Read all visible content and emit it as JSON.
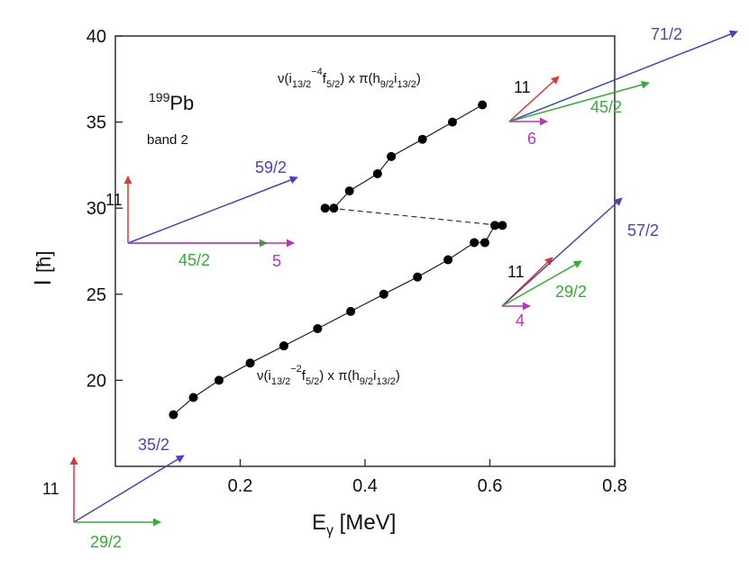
{
  "chart_data": {
    "type": "scatter",
    "title": "",
    "xlabel": {
      "main": "E",
      "sub": "γ",
      "unit": " [MeV]"
    },
    "ylabel": {
      "main": "I",
      "unit": "[ħ]"
    },
    "xlim": [
      0.0,
      0.8
    ],
    "ylim": [
      15.0,
      40.0
    ],
    "xticks": [
      0.2,
      0.4,
      0.6,
      0.8
    ],
    "xtick_labels": [
      "0.2",
      "0.4",
      "0.6",
      "0.8"
    ],
    "yticks": [
      20,
      25,
      30,
      35,
      40
    ],
    "ytick_labels": [
      "20",
      "25",
      "30",
      "35",
      "40"
    ],
    "grid": false,
    "series": [
      {
        "x": [
          0.093,
          0.125,
          0.166,
          0.216,
          0.27,
          0.324,
          0.377,
          0.43,
          0.484,
          0.533,
          0.575,
          0.592,
          0.608,
          0.62
        ],
        "y": [
          18,
          19,
          20,
          21,
          22,
          23,
          24,
          25,
          26,
          27,
          28,
          28,
          29,
          29
        ]
      },
      {
        "x": [
          0.336,
          0.35,
          0.375,
          0.42,
          0.442,
          0.492,
          0.54,
          0.588
        ],
        "y": [
          30,
          30,
          31,
          32,
          33,
          34,
          35,
          36
        ]
      }
    ],
    "connector": {
      "style": "dashed",
      "x": [
        0.345,
        0.615
      ],
      "y": [
        30,
        29
      ]
    },
    "annotations": {
      "nucleus": {
        "mass": "199",
        "symbol": "Pb"
      },
      "band": "band 2",
      "config_upper": {
        "a": "ν(i",
        "a_sub": "13/2",
        "a_sup": "−4",
        "b": "f",
        "b_sub": "5/2",
        "c": ") x π(h",
        "c_sub": "9/2",
        "d": "i",
        "d_sub": "13/2",
        "e": ")"
      },
      "config_lower": {
        "a": "ν(i",
        "a_sub": "13/2",
        "a_sup": "−2",
        "b": "f",
        "b_sub": "5/2",
        "c": ") x π(h",
        "c_sub": "9/2",
        "d": "i",
        "d_sub": "13/2",
        "e": ")"
      }
    },
    "vector_diagrams": [
      {
        "vectors": [
          {
            "label": "11",
            "color": "#d83a3a"
          },
          {
            "label": "59/2",
            "color": "#4646b4"
          },
          {
            "label": "45/2",
            "color": "#3aaa3a"
          },
          {
            "label": "5",
            "color": "#b23ab2"
          }
        ]
      },
      {
        "vectors": [
          {
            "label": "11",
            "color": "#d83a3a"
          },
          {
            "label": "71/2",
            "color": "#4646b4"
          },
          {
            "label": "45/2",
            "color": "#3aaa3a"
          },
          {
            "label": "6",
            "color": "#b23ab2"
          }
        ]
      },
      {
        "vectors": [
          {
            "label": "11",
            "color": "#d83a3a"
          },
          {
            "label": "57/2",
            "color": "#4646b4"
          },
          {
            "label": "29/2",
            "color": "#3aaa3a"
          },
          {
            "label": "4",
            "color": "#b23ab2"
          }
        ]
      },
      {
        "vectors": [
          {
            "label": "11",
            "color": "#d83a3a"
          },
          {
            "label": "35/2",
            "color": "#4646b4"
          },
          {
            "label": "29/2",
            "color": "#3aaa3a"
          }
        ]
      }
    ]
  }
}
